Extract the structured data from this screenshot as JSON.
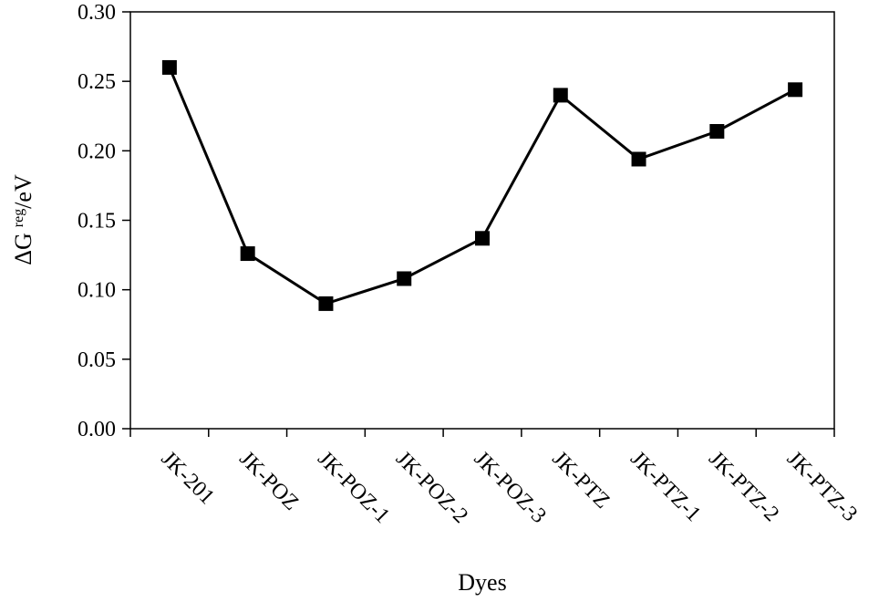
{
  "chart_data": {
    "type": "line",
    "categories": [
      "JK-201",
      "JK-POZ",
      "JK-POZ-1",
      "JK-POZ-2",
      "JK-POZ-3",
      "JK-PTZ",
      "JK-PTZ-1",
      "JK-PTZ-2",
      "JK-PTZ-3"
    ],
    "series": [
      {
        "values": [
          0.26,
          0.126,
          0.09,
          0.108,
          0.137,
          0.24,
          0.194,
          0.214,
          0.244
        ]
      }
    ],
    "title": "",
    "xlabel": "Dyes",
    "ylabel": {
      "prefix": "ΔG",
      "sup": "reg",
      "suffix": "/eV"
    },
    "ylim": [
      0,
      0.3
    ],
    "yticks": [
      "0.00",
      "0.05",
      "0.10",
      "0.15",
      "0.20",
      "0.25",
      "0.30"
    ],
    "grid": false,
    "legend": "none",
    "colors": {
      "line": "#000000",
      "marker": "#000000",
      "axis": "#000000"
    }
  }
}
